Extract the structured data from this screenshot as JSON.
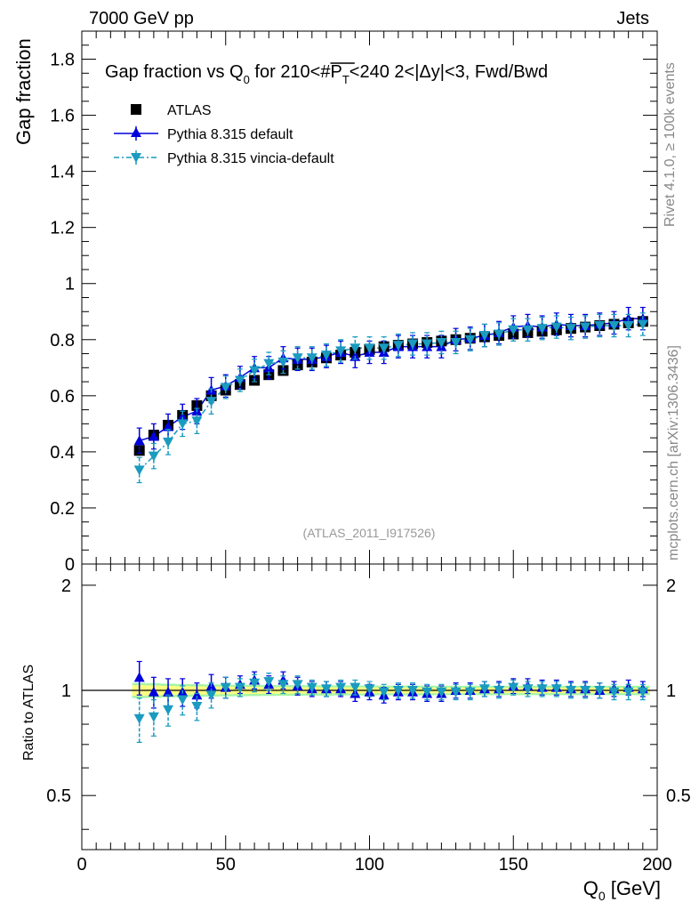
{
  "header": {
    "energy_label": "7000 GeV pp",
    "category_label": "Jets",
    "rivet_label": "Rivet 4.1.0, ≥ 100k events",
    "mcplots_label": "mcplots.cern.ch [arXiv:1306.3436]"
  },
  "colors": {
    "atlas": "#000000",
    "pythia_default": "#0000dd",
    "pythia_vincia": "#1a9bbf",
    "band_inner": "#ffff80",
    "band_outer": "#a6f5a6"
  },
  "chart_data": [
    {
      "type": "scatter",
      "panel": "main",
      "title": "Gap fraction vs Q₀ for 210<#P̅T<240  2<|Δy|<3, Fwd/Bwd",
      "title_parts": {
        "t1": "Gap fraction vs Q",
        "t1_sub": "0",
        "t2": " for 210<#",
        "t2_over": "P",
        "t2_sub": "T",
        "t3": "<240  2<|Δy|<3, Fwd/Bwd"
      },
      "watermark": "(ATLAS_2011_I917526)",
      "xlabel": "Q₀ [GeV]",
      "xlabel_parts": {
        "main": "Q",
        "sub": "0",
        "unit": " [GeV]"
      },
      "ylabel": "Gap fraction",
      "xlim": [
        0,
        200
      ],
      "ylim": [
        0,
        1.9
      ],
      "x_ticks": [
        0,
        50,
        100,
        150,
        200
      ],
      "y_ticks": [
        0,
        0.2,
        0.4,
        0.6,
        0.8,
        1,
        1.2,
        1.4,
        1.6,
        1.8
      ],
      "legend": [
        "ATLAS",
        "Pythia 8.315 default",
        "Pythia 8.315 vincia-default"
      ],
      "x": [
        20,
        25,
        30,
        35,
        40,
        45,
        50,
        55,
        60,
        65,
        70,
        75,
        80,
        85,
        90,
        95,
        100,
        105,
        110,
        115,
        120,
        125,
        130,
        135,
        140,
        145,
        150,
        155,
        160,
        165,
        170,
        175,
        180,
        185,
        190,
        195
      ],
      "series": [
        {
          "name": "ATLAS",
          "values": [
            0.405,
            0.46,
            0.495,
            0.53,
            0.565,
            0.6,
            0.62,
            0.64,
            0.655,
            0.675,
            0.69,
            0.71,
            0.72,
            0.735,
            0.745,
            0.755,
            0.765,
            0.775,
            0.78,
            0.785,
            0.79,
            0.795,
            0.8,
            0.805,
            0.81,
            0.815,
            0.82,
            0.825,
            0.83,
            0.835,
            0.84,
            0.845,
            0.85,
            0.855,
            0.86,
            0.865
          ],
          "errors": [
            0.015,
            0.015,
            0.015,
            0.015,
            0.015,
            0.015,
            0.015,
            0.015,
            0.015,
            0.015,
            0.015,
            0.015,
            0.015,
            0.015,
            0.015,
            0.015,
            0.015,
            0.015,
            0.015,
            0.015,
            0.015,
            0.015,
            0.015,
            0.015,
            0.015,
            0.015,
            0.015,
            0.015,
            0.015,
            0.015,
            0.015,
            0.015,
            0.015,
            0.015,
            0.015,
            0.015
          ]
        },
        {
          "name": "Pythia 8.315 default",
          "values": [
            0.44,
            0.455,
            0.49,
            0.525,
            0.545,
            0.62,
            0.635,
            0.665,
            0.7,
            0.7,
            0.735,
            0.73,
            0.73,
            0.74,
            0.755,
            0.74,
            0.755,
            0.755,
            0.775,
            0.775,
            0.775,
            0.775,
            0.8,
            0.805,
            0.815,
            0.825,
            0.845,
            0.85,
            0.845,
            0.855,
            0.85,
            0.85,
            0.855,
            0.86,
            0.875,
            0.875
          ],
          "errors": [
            0.045,
            0.045,
            0.045,
            0.045,
            0.045,
            0.045,
            0.04,
            0.04,
            0.04,
            0.04,
            0.04,
            0.04,
            0.04,
            0.04,
            0.04,
            0.04,
            0.04,
            0.04,
            0.04,
            0.04,
            0.04,
            0.04,
            0.04,
            0.04,
            0.04,
            0.04,
            0.04,
            0.04,
            0.04,
            0.04,
            0.04,
            0.04,
            0.04,
            0.04,
            0.04,
            0.04
          ]
        },
        {
          "name": "Pythia 8.315 vincia-default",
          "values": [
            0.335,
            0.385,
            0.435,
            0.5,
            0.51,
            0.58,
            0.63,
            0.655,
            0.69,
            0.715,
            0.72,
            0.735,
            0.735,
            0.745,
            0.76,
            0.77,
            0.77,
            0.77,
            0.78,
            0.785,
            0.785,
            0.79,
            0.79,
            0.8,
            0.815,
            0.82,
            0.835,
            0.835,
            0.84,
            0.845,
            0.84,
            0.845,
            0.85,
            0.85,
            0.85,
            0.855
          ],
          "errors": [
            0.045,
            0.045,
            0.045,
            0.045,
            0.045,
            0.045,
            0.04,
            0.04,
            0.04,
            0.04,
            0.04,
            0.04,
            0.04,
            0.04,
            0.04,
            0.04,
            0.04,
            0.04,
            0.04,
            0.04,
            0.04,
            0.04,
            0.04,
            0.04,
            0.04,
            0.04,
            0.04,
            0.04,
            0.04,
            0.04,
            0.04,
            0.04,
            0.04,
            0.04,
            0.04,
            0.04
          ]
        }
      ]
    },
    {
      "type": "scatter",
      "panel": "ratio",
      "ylabel": "Ratio to ATLAS",
      "xlim": [
        0,
        200
      ],
      "ylim": [
        0.35,
        2.3
      ],
      "y_scale": "log",
      "y_ticks": [
        0.5,
        1,
        2
      ],
      "y_tick_labels": [
        "0.5",
        "1",
        "2"
      ],
      "x_ticks": [
        0,
        50,
        100,
        150,
        200
      ],
      "x": [
        20,
        25,
        30,
        35,
        40,
        45,
        50,
        55,
        60,
        65,
        70,
        75,
        80,
        85,
        90,
        95,
        100,
        105,
        110,
        115,
        120,
        125,
        130,
        135,
        140,
        145,
        150,
        155,
        160,
        165,
        170,
        175,
        180,
        185,
        190,
        195
      ],
      "reference_band": {
        "inner_halfwidth": [
          0.035,
          0.033,
          0.03,
          0.028,
          0.027,
          0.026,
          0.025,
          0.024,
          0.023,
          0.022,
          0.022,
          0.021,
          0.021,
          0.02,
          0.02,
          0.02,
          0.02,
          0.019,
          0.019,
          0.019,
          0.019,
          0.019,
          0.019,
          0.018,
          0.018,
          0.018,
          0.018,
          0.018,
          0.018,
          0.018,
          0.018,
          0.018,
          0.018,
          0.018,
          0.018,
          0.018
        ],
        "outer_halfwidth": [
          0.05,
          0.048,
          0.045,
          0.043,
          0.042,
          0.04,
          0.039,
          0.038,
          0.037,
          0.036,
          0.035,
          0.035,
          0.034,
          0.034,
          0.033,
          0.033,
          0.033,
          0.032,
          0.032,
          0.032,
          0.032,
          0.031,
          0.031,
          0.031,
          0.031,
          0.031,
          0.031,
          0.031,
          0.031,
          0.031,
          0.031,
          0.031,
          0.031,
          0.031,
          0.031,
          0.031
        ]
      },
      "series": [
        {
          "name": "Pythia 8.315 default",
          "values": [
            1.09,
            0.99,
            0.99,
            0.99,
            0.97,
            1.03,
            1.02,
            1.04,
            1.07,
            1.04,
            1.07,
            1.03,
            1.01,
            1.01,
            1.01,
            0.98,
            0.99,
            0.97,
            0.99,
            0.99,
            0.98,
            0.98,
            1.0,
            1.0,
            1.01,
            1.01,
            1.03,
            1.03,
            1.02,
            1.02,
            1.01,
            1.01,
            1.0,
            1.01,
            1.02,
            1.01
          ],
          "errors": [
            0.12,
            0.1,
            0.09,
            0.09,
            0.08,
            0.08,
            0.07,
            0.06,
            0.06,
            0.06,
            0.06,
            0.06,
            0.05,
            0.05,
            0.05,
            0.05,
            0.05,
            0.05,
            0.05,
            0.05,
            0.05,
            0.05,
            0.05,
            0.05,
            0.05,
            0.05,
            0.05,
            0.05,
            0.05,
            0.05,
            0.05,
            0.05,
            0.05,
            0.05,
            0.05,
            0.05
          ]
        },
        {
          "name": "Pythia 8.315 vincia-default",
          "values": [
            0.83,
            0.84,
            0.88,
            0.94,
            0.9,
            0.97,
            1.02,
            1.02,
            1.05,
            1.06,
            1.04,
            1.04,
            1.02,
            1.01,
            1.02,
            1.02,
            1.01,
            0.99,
            1.0,
            1.0,
            0.99,
            0.99,
            0.99,
            0.99,
            1.01,
            1.0,
            1.02,
            1.01,
            1.01,
            1.01,
            1.0,
            1.0,
            1.0,
            0.99,
            0.99,
            0.99
          ],
          "errors": [
            0.12,
            0.1,
            0.09,
            0.09,
            0.08,
            0.08,
            0.07,
            0.06,
            0.06,
            0.06,
            0.06,
            0.06,
            0.05,
            0.05,
            0.05,
            0.05,
            0.05,
            0.05,
            0.05,
            0.05,
            0.05,
            0.05,
            0.05,
            0.05,
            0.05,
            0.05,
            0.05,
            0.05,
            0.05,
            0.05,
            0.05,
            0.05,
            0.05,
            0.05,
            0.05,
            0.05
          ]
        }
      ]
    }
  ]
}
